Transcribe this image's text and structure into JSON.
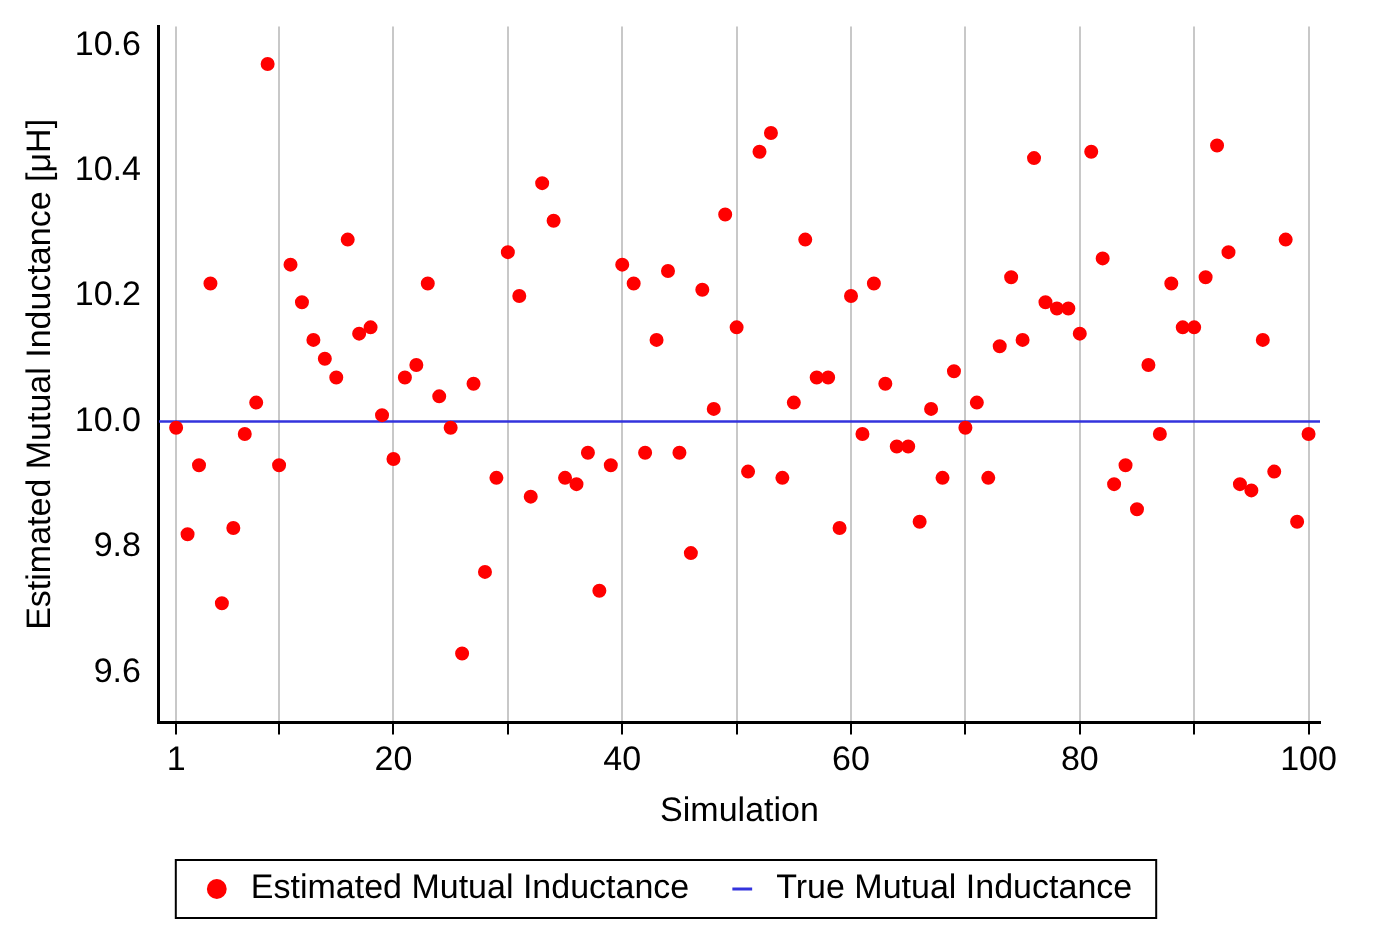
{
  "chart_data": {
    "type": "scatter",
    "xlabel": "Simulation",
    "ylabel": "Estimated Mutual Inductance [μH]",
    "x": [
      1,
      2,
      3,
      4,
      5,
      6,
      7,
      8,
      9,
      10,
      11,
      12,
      13,
      14,
      15,
      16,
      17,
      18,
      19,
      20,
      21,
      22,
      23,
      24,
      25,
      26,
      27,
      28,
      29,
      30,
      31,
      32,
      33,
      34,
      35,
      36,
      37,
      38,
      39,
      40,
      41,
      42,
      43,
      44,
      45,
      46,
      47,
      48,
      49,
      50,
      51,
      52,
      53,
      54,
      55,
      56,
      57,
      58,
      59,
      60,
      61,
      62,
      63,
      64,
      65,
      66,
      67,
      68,
      69,
      70,
      71,
      72,
      73,
      74,
      75,
      76,
      77,
      78,
      79,
      80,
      81,
      82,
      83,
      84,
      85,
      86,
      87,
      88,
      89,
      90,
      91,
      92,
      93,
      94,
      95,
      96,
      97,
      98,
      99,
      100
    ],
    "series": [
      {
        "name": "Estimated Mutual Inductance",
        "color": "#ff0000",
        "marker": "circle",
        "values": [
          9.99,
          9.82,
          9.93,
          10.22,
          9.71,
          9.83,
          9.98,
          10.03,
          10.57,
          9.93,
          10.25,
          10.19,
          10.13,
          10.1,
          10.07,
          10.29,
          10.14,
          10.15,
          10.01,
          9.94,
          10.07,
          10.09,
          10.22,
          10.04,
          9.99,
          9.63,
          10.06,
          9.76,
          9.91,
          10.27,
          10.2,
          9.88,
          10.38,
          10.32,
          9.91,
          9.9,
          9.95,
          9.73,
          9.93,
          10.25,
          10.22,
          9.95,
          10.13,
          10.24,
          9.95,
          9.79,
          10.21,
          10.02,
          10.33,
          10.15,
          9.92,
          10.43,
          10.46,
          9.91,
          10.03,
          10.29,
          10.07,
          10.07,
          9.83,
          10.2,
          9.98,
          10.22,
          10.06,
          9.96,
          9.96,
          9.84,
          10.02,
          9.91,
          10.08,
          9.99,
          10.03,
          9.91,
          10.12,
          10.23,
          10.13,
          10.42,
          10.19,
          10.18,
          10.18,
          10.14,
          10.43,
          10.26,
          9.9,
          9.93,
          9.86,
          10.09,
          9.98,
          10.22,
          10.15,
          10.15,
          10.23,
          10.44,
          10.27,
          9.9,
          9.89,
          10.13,
          9.92,
          10.29,
          9.84,
          9.98
        ]
      },
      {
        "name": "True Mutual Inductance",
        "color": "#3333dd",
        "type": "line",
        "marker": "none",
        "x": [
          -0.5,
          101
        ],
        "values": [
          10,
          10
        ]
      }
    ],
    "xlim": [
      -0.5,
      101
    ],
    "xticks": [
      1,
      {
        "value": 10,
        "label": null
      },
      20,
      {
        "value": 30,
        "label": null
      },
      40,
      {
        "value": 50,
        "label": null
      },
      60,
      {
        "value": 70,
        "label": null
      },
      80,
      {
        "value": 90,
        "label": null
      },
      100
    ],
    "ylim": [
      9.52,
      10.63
    ],
    "yticks": [
      9.6,
      9.8,
      {
        "value": 10,
        "label": "10.0"
      },
      10.2,
      10.4,
      10.6
    ],
    "grid": "x",
    "legend": "bottom"
  }
}
